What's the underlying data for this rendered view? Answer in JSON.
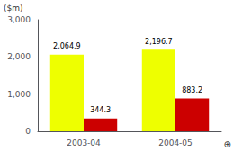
{
  "chart_data": {
    "type": "bar",
    "categories": [
      "2003-04",
      "2004-05"
    ],
    "series": [
      {
        "color": "#EEFF00",
        "values": [
          2064.9,
          2196.7
        ],
        "value_labels": [
          "2,064.9",
          "2,196.7"
        ]
      },
      {
        "color": "#CC0000",
        "values": [
          344.3,
          883.2
        ],
        "value_labels": [
          "344.3",
          "883.2"
        ]
      }
    ],
    "ylabel": "($m)",
    "annotations": [
      "⊕"
    ],
    "ylim": [
      0,
      3000
    ],
    "yticks": [
      0,
      {
        "value": 1000,
        "label": "1,000"
      },
      {
        "value": 2000,
        "label": "2,000"
      },
      {
        "value": 3000,
        "label": "3,000"
      }
    ],
    "grid": false,
    "data_labels": true
  }
}
